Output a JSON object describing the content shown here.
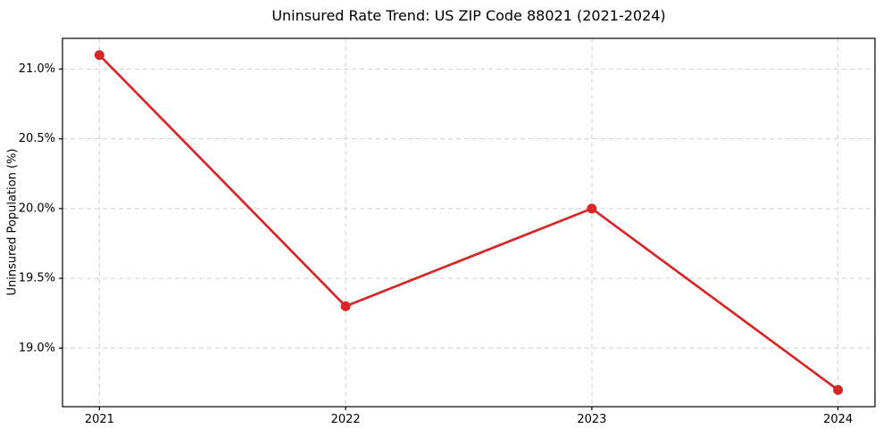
{
  "chart_data": {
    "type": "line",
    "title": "Uninsured Rate Trend: US ZIP Code 88021 (2021-2024)",
    "xlabel": "",
    "ylabel": "Uninsured Population (%)",
    "x": [
      2021,
      2022,
      2023,
      2024
    ],
    "x_tick_labels": [
      "2021",
      "2022",
      "2023",
      "2024"
    ],
    "series": [
      {
        "name": "Uninsured rate",
        "values": [
          21.1,
          19.3,
          20.0,
          18.7
        ]
      }
    ],
    "y_ticks": [
      19.0,
      19.5,
      20.0,
      20.5,
      21.0
    ],
    "y_tick_labels": [
      "19.0%",
      "19.5%",
      "20.0%",
      "20.5%",
      "21.0%"
    ],
    "xlim": [
      2020.85,
      2024.15
    ],
    "ylim": [
      18.58,
      21.22
    ],
    "grid": true,
    "grid_style": "dashed",
    "legend": false,
    "colors": {
      "line": "#d62728",
      "marker": "#d62728",
      "grid": "#cfcfcf",
      "spine": "#000000",
      "text": "#000000",
      "background": "#ffffff"
    }
  }
}
